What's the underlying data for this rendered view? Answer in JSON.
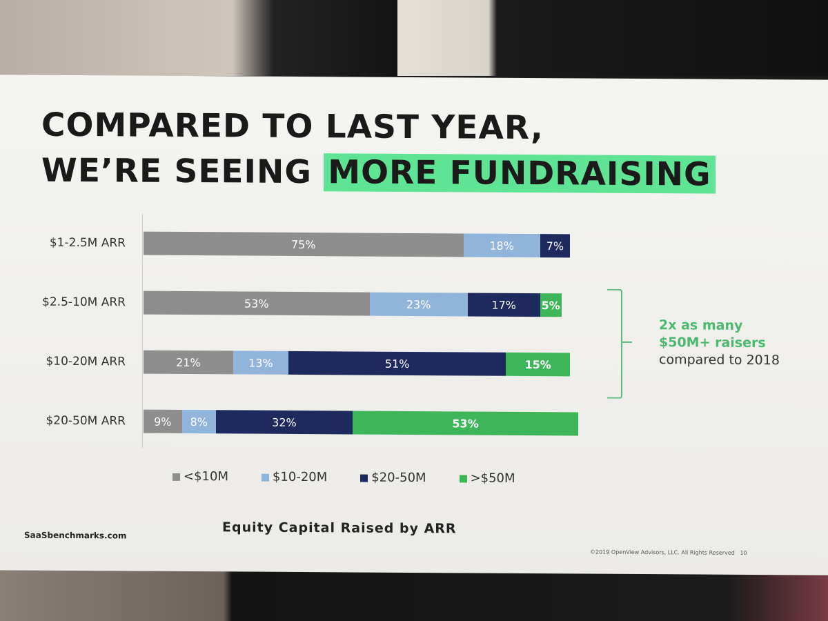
{
  "slide": {
    "title_line1": "COMPARED TO LAST YEAR,",
    "title_line2_plain": "WE’RE SEEING ",
    "title_line2_highlight": "MORE FUNDRAISING",
    "annotation_line1": "2x as many",
    "annotation_line2": "$50M+ raisers",
    "annotation_line3": "compared to 2018",
    "brand": "SaaSbenchmarks.com",
    "copyright": "©2019 OpenView Advisors, LLC. All Rights Reserved",
    "page_number": "10",
    "highlight_color": "#5fe394"
  },
  "chart_data": {
    "type": "bar",
    "orientation": "horizontal",
    "stacked": true,
    "title": "Equity Capital Raised by ARR",
    "categories": [
      "$1-2.5M ARR",
      "$2.5-10M ARR",
      "$10-20M ARR",
      "$20-50M ARR"
    ],
    "series": [
      {
        "name": "<$10M",
        "color": "#8e8e8e",
        "values": [
          75,
          53,
          21,
          9
        ]
      },
      {
        "name": "$10-20M",
        "color": "#90b4da",
        "values": [
          18,
          23,
          13,
          8
        ]
      },
      {
        "name": "$20-50M",
        "color": "#1e2a5e",
        "values": [
          7,
          17,
          51,
          32
        ]
      },
      {
        "name": ">$50M",
        "color": "#3db65a",
        "values": [
          0,
          5,
          15,
          53
        ]
      }
    ],
    "xlim": [
      0,
      100
    ],
    "unit": "%",
    "legend": "bottom",
    "grid": false
  }
}
